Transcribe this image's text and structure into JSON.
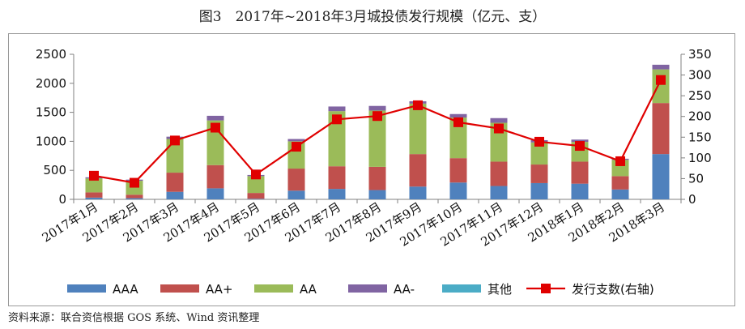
{
  "title": "图3　2017年~2018年3月城投债发行规模（亿元、支）",
  "source": "资料来源：联合资信根据 GOS 系统、Wind 资讯整理",
  "chart_data": {
    "type": "bar",
    "stacked": true,
    "categories": [
      "2017年1月",
      "2017年2月",
      "2017年3月",
      "2017年4月",
      "2017年5月",
      "2017年6月",
      "2017年7月",
      "2017年8月",
      "2017年9月",
      "2017年10月",
      "2017年11月",
      "2017年12月",
      "2018年1月",
      "2018年2月",
      "2018年3月"
    ],
    "y_left": {
      "ticks": [
        "0",
        "500",
        "1000",
        "1500",
        "2000",
        "2500"
      ],
      "ylim": [
        0,
        2500
      ]
    },
    "y_right": {
      "ticks": [
        "0",
        "50",
        "100",
        "150",
        "200",
        "250",
        "300",
        "350"
      ],
      "ylim": [
        0,
        350
      ]
    },
    "series": [
      {
        "name": "AAA",
        "color": "#4f81bd",
        "values": [
          30,
          20,
          130,
          190,
          10,
          150,
          180,
          160,
          220,
          290,
          230,
          280,
          270,
          170,
          780
        ]
      },
      {
        "name": "AA+",
        "color": "#c0504d",
        "values": [
          90,
          60,
          330,
          400,
          100,
          380,
          390,
          400,
          560,
          420,
          420,
          320,
          380,
          230,
          880
        ]
      },
      {
        "name": "AA",
        "color": "#9bbb59",
        "values": [
          240,
          240,
          580,
          770,
          290,
          470,
          950,
          970,
          870,
          700,
          670,
          380,
          340,
          280,
          580
        ]
      },
      {
        "name": "AA-",
        "color": "#8064a2",
        "values": [
          20,
          20,
          40,
          80,
          20,
          40,
          80,
          80,
          40,
          60,
          80,
          40,
          40,
          20,
          80
        ]
      },
      {
        "name": "其他",
        "color": "#4bacc6",
        "values": [
          0,
          0,
          0,
          0,
          0,
          0,
          0,
          0,
          0,
          0,
          0,
          0,
          0,
          0,
          0
        ]
      }
    ],
    "line": {
      "name": "发行支数(右轴)",
      "color": "#e00000",
      "axis": "right",
      "values": [
        57,
        40,
        142,
        173,
        60,
        127,
        193,
        201,
        227,
        186,
        171,
        139,
        129,
        92,
        288
      ]
    },
    "grid": false,
    "legend": "bottom"
  }
}
